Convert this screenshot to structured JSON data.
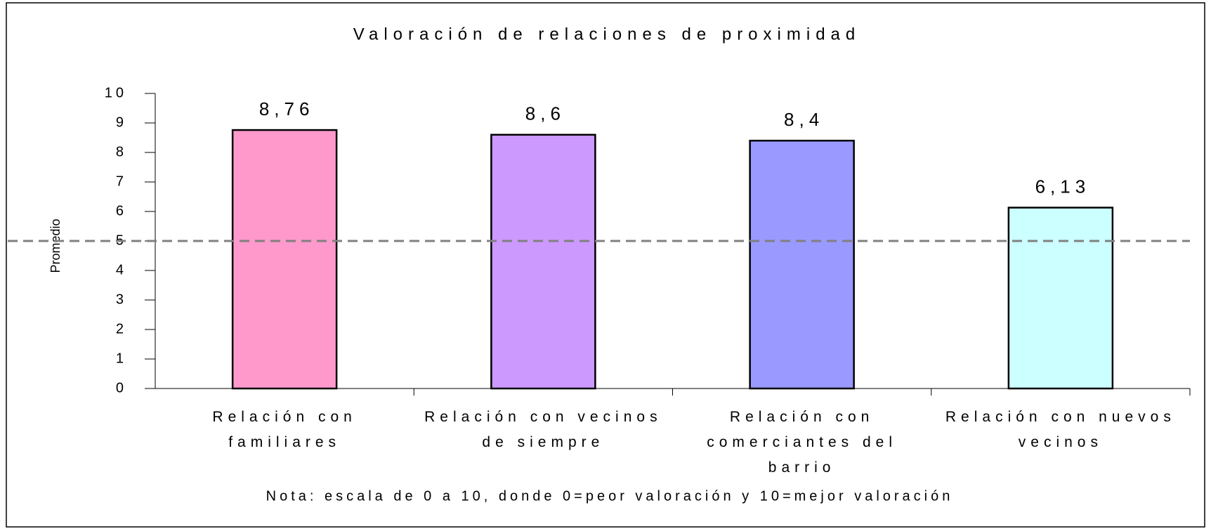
{
  "chart_data": {
    "type": "bar",
    "title": "Valoración de relaciones de proximidad",
    "y_label": "Promedio",
    "note": "Nota: escala de 0 a 10, donde 0=peor valoración y 10=mejor valoración",
    "categories": [
      "Relación con familiares",
      "Relación con vecinos de siempre",
      "Relación con comerciantes del barrio",
      "Relación con nuevos vecinos"
    ],
    "values": [
      8.76,
      8.6,
      8.4,
      6.13
    ],
    "value_labels": [
      "8,76",
      "8,6",
      "8,4",
      "6,13"
    ],
    "colors": [
      "#ff99cc",
      "#cc99ff",
      "#9999ff",
      "#ccffff"
    ],
    "reference_line": 5,
    "ylim": [
      0,
      10
    ],
    "yticks": [
      0,
      1,
      2,
      3,
      4,
      5,
      6,
      7,
      8,
      9,
      10
    ]
  }
}
